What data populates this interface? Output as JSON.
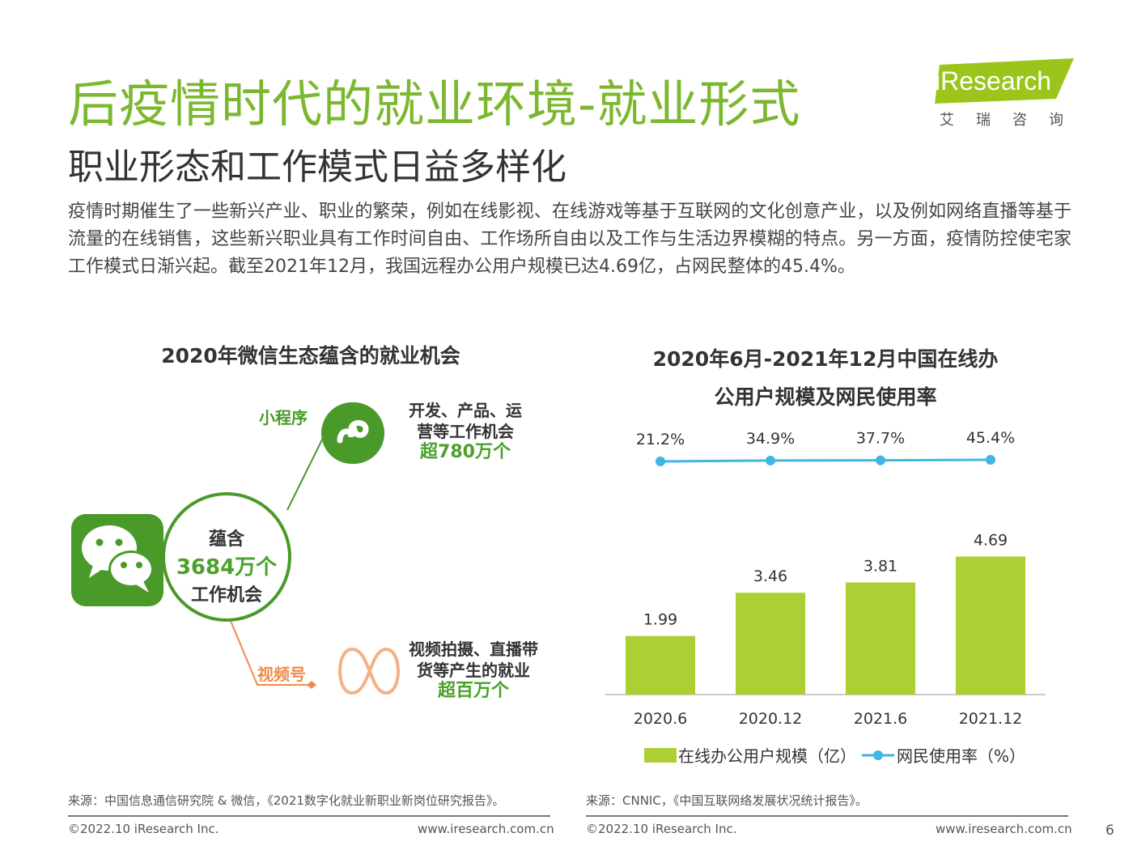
{
  "header": {
    "title": "后疫情时代的就业环境-就业形式",
    "subtitle": "职业形态和工作模式日益多样化",
    "intro": "疫情时期催生了一些新兴产业、职业的繁荣，例如在线影视、在线游戏等基于互联网的文化创意产业，以及例如网络直播等基于流量的在线销售，这些新兴职业具有工作时间自由、工作场所自由以及工作与生活边界模糊的特点。另一方面，疫情防控使宅家工作模式日渐兴起。截至2021年12月，我国远程办公用户规模已达4.69亿，占网民整体的45.4%。"
  },
  "logo": {
    "name": "iResearch",
    "sub": "艾瑞咨询"
  },
  "left_panel": {
    "title": "2020年微信生态蕴含的就业机会",
    "center": {
      "line1": "蕴含",
      "line2": "3684万个",
      "line3": "工作机会"
    },
    "branch_top": {
      "label": "小程序",
      "desc1": "开发、产品、运",
      "desc2": "营等工作机会",
      "highlight": "超780万个"
    },
    "branch_bottom": {
      "label": "视频号",
      "desc1": "视频拍摄、直播带",
      "desc2": "货等产生的就业",
      "highlight": "超百万个"
    },
    "source": "来源：中国信息通信研究院 & 微信，《2021数字化就业新职业新岗位研究报告》。"
  },
  "chart_data": {
    "type": "bar",
    "title_line1": "2020年6月-2021年12月中国在线办",
    "title_line2": "公用户规模及网民使用率",
    "categories": [
      "2020.6",
      "2020.12",
      "2021.6",
      "2021.12"
    ],
    "series": [
      {
        "name": "在线办公用户规模（亿）",
        "type": "bar",
        "values": [
          1.99,
          3.46,
          3.81,
          4.69
        ],
        "labels": [
          "1.99",
          "3.46",
          "3.81",
          "4.69"
        ],
        "color": "#acd033"
      },
      {
        "name": "网民使用率（%）",
        "type": "line",
        "values": [
          21.2,
          34.9,
          37.7,
          45.4
        ],
        "labels": [
          "21.2%",
          "34.9%",
          "37.7%",
          "45.4%"
        ],
        "color": "#3fb6e4"
      }
    ],
    "source": "来源：CNNIC，《中国互联网络发展状况统计报告》。"
  },
  "footer": {
    "copyright": "©2022.10 iResearch Inc.",
    "url": "www.iresearch.com.cn",
    "page": "6"
  },
  "colors": {
    "brand_green": "#7cb82f",
    "bar_green": "#acd033",
    "line_blue": "#3fb6e4",
    "wechat_green": "#4a9a2a",
    "orange": "#f08a4b"
  },
  "icons": [
    "wechat-icon",
    "mini-program-icon",
    "channels-icon"
  ]
}
